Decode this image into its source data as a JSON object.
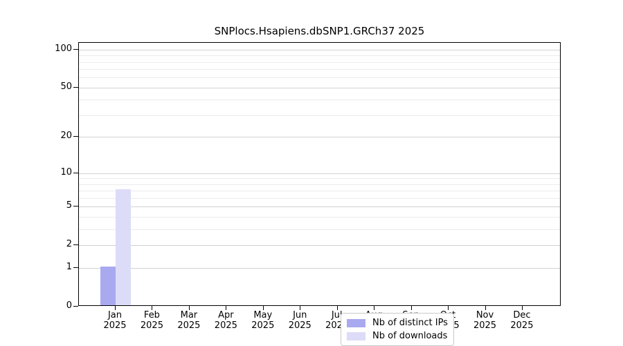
{
  "chart_data": {
    "type": "bar",
    "title": "SNPlocs.Hsapiens.dbSNP1.GRCh37 2025",
    "categories": [
      "Jan",
      "Feb",
      "Mar",
      "Apr",
      "May",
      "Jun",
      "Jul",
      "Aug",
      "Sep",
      "Oct",
      "Nov",
      "Dec"
    ],
    "x_year_label": "2025",
    "series": [
      {
        "name": "Nb of distinct IPs",
        "color": "#a9a9f0",
        "values": [
          1,
          0,
          0,
          0,
          0,
          0,
          0,
          0,
          0,
          0,
          0,
          0
        ]
      },
      {
        "name": "Nb of downloads",
        "color": "#dcdcf8",
        "values": [
          7,
          0,
          0,
          0,
          0,
          0,
          0,
          0,
          0,
          0,
          0,
          0
        ]
      }
    ],
    "y_scale": "log10(1+x)",
    "y_ticks": [
      0,
      1,
      2,
      5,
      10,
      20,
      50,
      100
    ],
    "y_tick_labels": [
      "0",
      "1",
      "2",
      "5",
      "10",
      "20",
      "50",
      "100"
    ],
    "y_minor_gridlines": [
      3,
      4,
      6,
      7,
      8,
      9,
      30,
      40,
      60,
      70,
      80,
      90
    ],
    "ylim": [
      0,
      113
    ],
    "grid": "horizontal",
    "legend_position": "inside-bottom-center",
    "colors": {
      "frame": "#000000",
      "major_grid": "#d2d2d2",
      "minor_grid": "#ececec",
      "background": "#ffffff",
      "text": "#000000"
    }
  }
}
